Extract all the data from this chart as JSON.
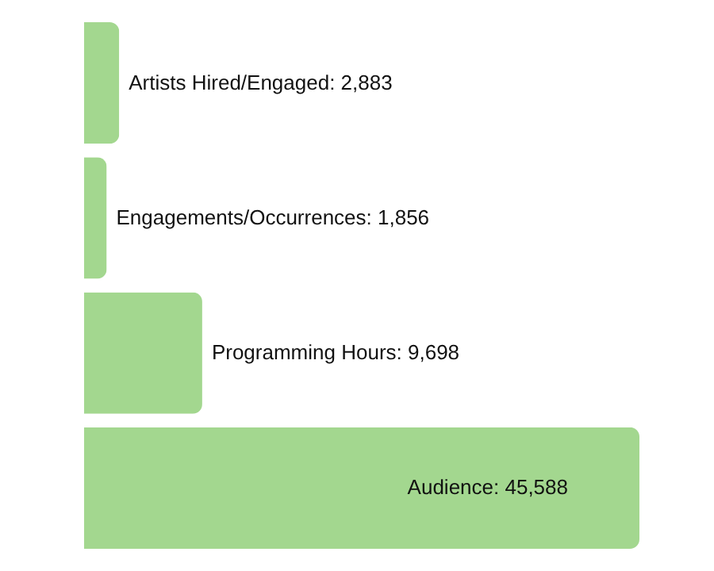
{
  "chart_data": {
    "type": "bar",
    "orientation": "horizontal",
    "categories": [
      null,
      null,
      null,
      null
    ],
    "values": [
      2883,
      1856,
      9698,
      45588
    ],
    "value_labels": [
      "Artists Hired/Engaged: 2,883",
      "Engagements/Occurrences: 1,856",
      "Programming Hours: 9,698",
      "Audience: 45,588"
    ],
    "color": "#a3d78f",
    "tick_labels": false
  }
}
